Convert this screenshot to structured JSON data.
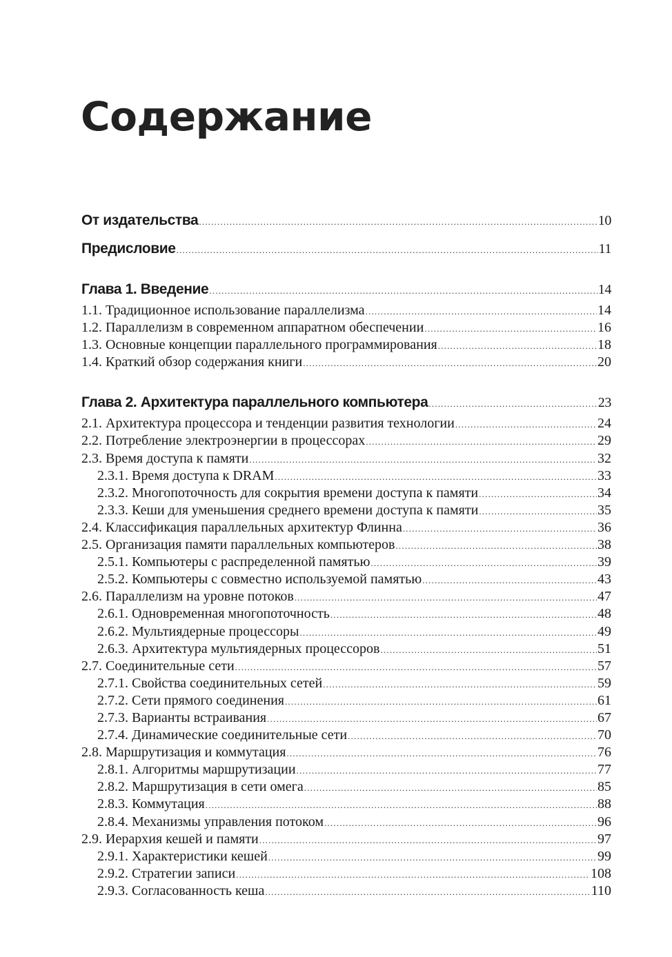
{
  "title": "Содержание",
  "entries": [
    {
      "label": "От издательства",
      "page": "10",
      "level": 0,
      "bold": true
    },
    {
      "label": "Предисловие",
      "page": "11",
      "level": 0,
      "bold": true
    },
    {
      "label": "Глава 1. Введение",
      "page": "14",
      "level": 0,
      "bold": true
    },
    {
      "label": "1.1. Традиционное использование параллелизма",
      "page": "14",
      "level": 1
    },
    {
      "label": "1.2. Параллелизм в современном аппаратном обеспечении",
      "page": "16",
      "level": 1
    },
    {
      "label": "1.3. Основные концепции параллельного программирования",
      "page": "18",
      "level": 1
    },
    {
      "label": "1.4. Краткий обзор содержания книги",
      "page": "20",
      "level": 1
    },
    {
      "label": "Глава 2. Архитектура параллельного компьютера",
      "page": "23",
      "level": 0,
      "bold": true
    },
    {
      "label": "2.1. Архитектура процессора и тенденции развития технологии",
      "page": "24",
      "level": 1
    },
    {
      "label": "2.2. Потребление электроэнергии в процессорах",
      "page": "29",
      "level": 1
    },
    {
      "label": "2.3. Время доступа к памяти",
      "page": "32",
      "level": 1
    },
    {
      "label": "2.3.1. Время доступа к DRAM",
      "page": "33",
      "level": 2
    },
    {
      "label": "2.3.2. Многопоточность для сокрытия времени доступа к памяти",
      "page": "34",
      "level": 2
    },
    {
      "label": "2.3.3. Кеши для уменьшения среднего времени доступа к памяти",
      "page": "35",
      "level": 2
    },
    {
      "label": "2.4. Классификация параллельных архитектур Флинна",
      "page": "36",
      "level": 1
    },
    {
      "label": "2.5. Организация памяти параллельных компьютеров",
      "page": "38",
      "level": 1
    },
    {
      "label": "2.5.1. Компьютеры с распределенной памятью",
      "page": "39",
      "level": 2
    },
    {
      "label": "2.5.2. Компьютеры с совместно используемой памятью",
      "page": "43",
      "level": 2
    },
    {
      "label": "2.6. Параллелизм на уровне потоков",
      "page": "47",
      "level": 1
    },
    {
      "label": "2.6.1. Одновременная многопоточность",
      "page": "48",
      "level": 2
    },
    {
      "label": "2.6.2. Мультиядерные процессоры",
      "page": "49",
      "level": 2
    },
    {
      "label": "2.6.3. Архитектура мультиядерных процессоров",
      "page": "51",
      "level": 2
    },
    {
      "label": "2.7. Соединительные сети",
      "page": "57",
      "level": 1
    },
    {
      "label": "2.7.1. Свойства соединительных сетей",
      "page": "59",
      "level": 2
    },
    {
      "label": "2.7.2. Сети прямого соединения",
      "page": "61",
      "level": 2
    },
    {
      "label": "2.7.3. Варианты встраивания",
      "page": "67",
      "level": 2
    },
    {
      "label": "2.7.4. Динамические соединительные сети",
      "page": "70",
      "level": 2
    },
    {
      "label": "2.8. Маршрутизация и коммутация",
      "page": "76",
      "level": 1
    },
    {
      "label": "2.8.1. Алгоритмы маршрутизации",
      "page": "77",
      "level": 2
    },
    {
      "label": "2.8.2. Маршрутизация в сети омега",
      "page": "85",
      "level": 2
    },
    {
      "label": "2.8.3. Коммутация",
      "page": "88",
      "level": 2
    },
    {
      "label": "2.8.4. Механизмы управления потоком",
      "page": "96",
      "level": 2
    },
    {
      "label": "2.9. Иерархия кешей и памяти",
      "page": "97",
      "level": 1
    },
    {
      "label": "2.9.1. Характеристики кешей",
      "page": "99",
      "level": 2
    },
    {
      "label": "2.9.2. Стратегии записи",
      "page": "108",
      "level": 2
    },
    {
      "label": "2.9.3. Согласованность кеша",
      "page": "110",
      "level": 2
    }
  ]
}
